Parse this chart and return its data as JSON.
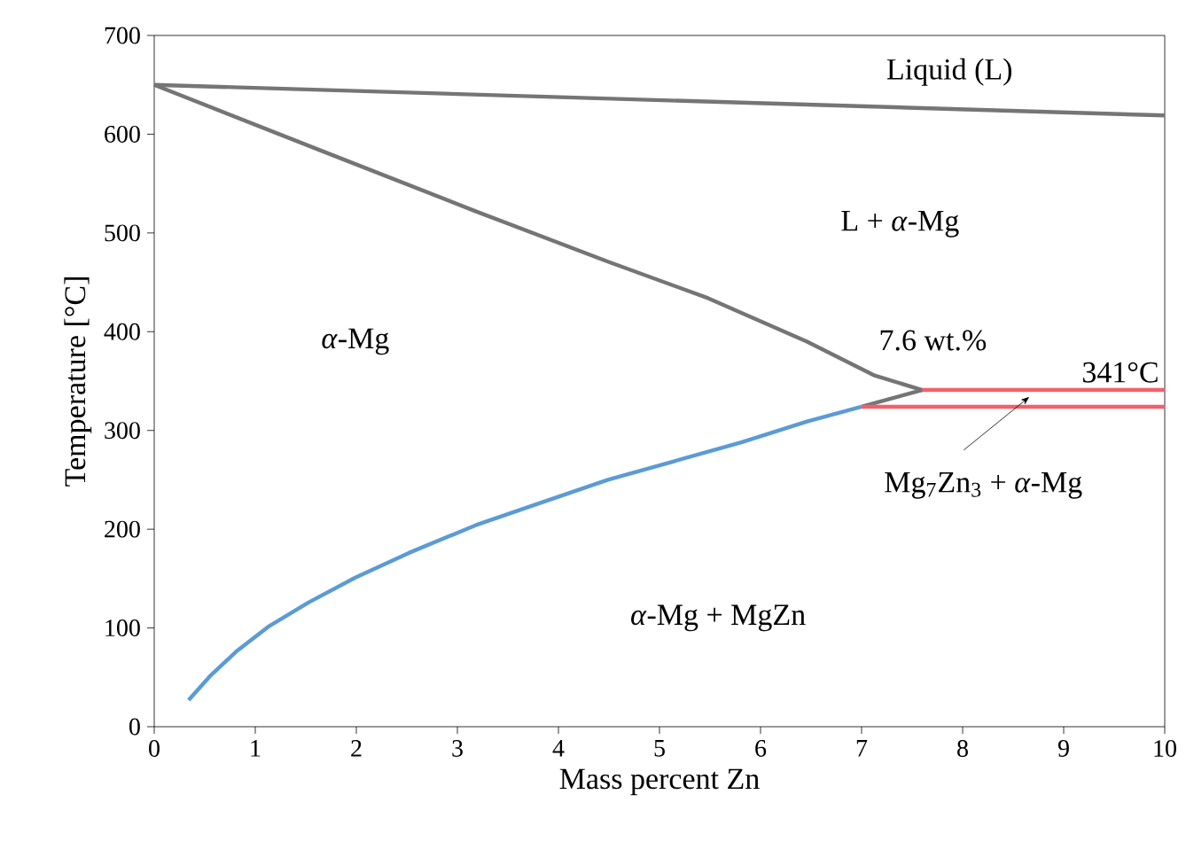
{
  "chart_data": {
    "type": "line",
    "xlabel": "Mass percent Zn",
    "ylabel": "Temperature [°C]",
    "xlim": [
      0,
      10
    ],
    "ylim": [
      0,
      700
    ],
    "xticks": [
      0,
      1,
      2,
      3,
      4,
      5,
      6,
      7,
      8,
      9,
      10
    ],
    "yticks": [
      0,
      100,
      200,
      300,
      400,
      500,
      600,
      700
    ],
    "series": [
      {
        "color": "#757575",
        "x": [
          0,
          10
        ],
        "values": [
          650,
          619
        ]
      },
      {
        "color": "#757575",
        "x": [
          0,
          1.66,
          3.18,
          4.49,
          5.48,
          6.46,
          7.12,
          7.6,
          7.0
        ],
        "values": [
          650,
          583,
          522,
          471,
          434,
          390,
          356,
          341,
          324
        ]
      },
      {
        "color": "#5b9bd5",
        "x": [
          0.34,
          0.55,
          0.81,
          1.14,
          1.53,
          1.99,
          2.52,
          3.18,
          3.83,
          4.49,
          5.15,
          5.81,
          6.46,
          7.0
        ],
        "values": [
          27,
          51,
          76,
          102,
          126,
          151,
          176,
          204,
          227,
          250,
          269,
          288,
          309,
          324
        ]
      },
      {
        "color": "#f0626b",
        "x": [
          7.6,
          10
        ],
        "values": [
          341,
          341
        ]
      },
      {
        "color": "#f0626b",
        "x": [
          7.0,
          10
        ],
        "values": [
          324,
          324
        ]
      }
    ],
    "annotations": [
      "Liquid (L)",
      "L + *α*-Mg",
      "*α*-Mg",
      "*α*-Mg + MgZn",
      {
        "text": "7.6 wt.%",
        "x": 7.6,
        "y": 341
      },
      {
        "text": "341°C",
        "x": 10,
        "y": 341
      },
      {
        "text": "Mg$_{7}$Zn$_{3}$ + *α*-Mg",
        "x": 8.66,
        "y": 334
      }
    ]
  }
}
